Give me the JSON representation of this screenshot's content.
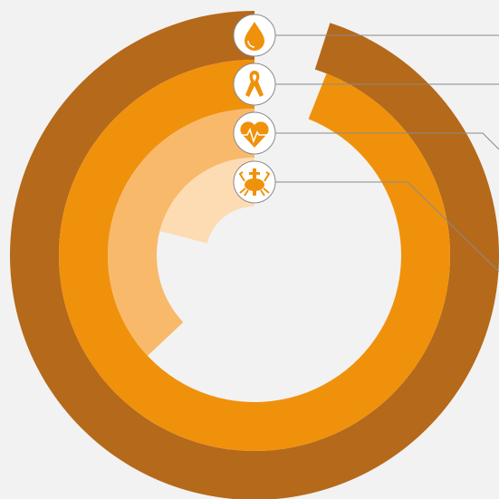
{
  "chart_data": {
    "type": "radial_bar",
    "series": [
      {
        "color": "#b5691a",
        "values": [
          95
        ]
      },
      {
        "color": "#f0910c",
        "values": [
          94
        ]
      },
      {
        "color": "#f9b96b",
        "values": [
          37
        ]
      },
      {
        "color": "#fddcb4",
        "values": [
          21
        ]
      }
    ],
    "ylim": [
      0,
      100
    ]
  }
}
